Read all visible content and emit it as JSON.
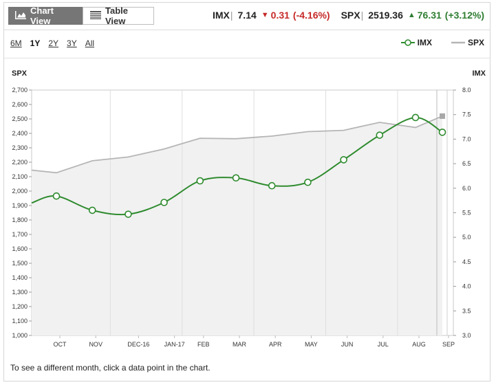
{
  "toolbar": {
    "chart_view_label": "Chart View",
    "table_view_label": "Table View"
  },
  "quotes": [
    {
      "symbol": "IMX",
      "value": "7.14",
      "change": "0.31",
      "pct": "(-4.16%)",
      "direction": "down"
    },
    {
      "symbol": "SPX",
      "value": "2519.36",
      "change": "76.31",
      "pct": "(+3.12%)",
      "direction": "up"
    }
  ],
  "ranges": [
    {
      "label": "6M",
      "selected": false
    },
    {
      "label": "1Y",
      "selected": true
    },
    {
      "label": "2Y",
      "selected": false
    },
    {
      "label": "3Y",
      "selected": false
    },
    {
      "label": "All",
      "selected": false
    }
  ],
  "legend": {
    "imx_label": "IMX",
    "spx_label": "SPX"
  },
  "footnote": "To see a different month, click a data point in the chart.",
  "colors": {
    "imx": "#2e8b2e",
    "spx": "#b5b5b5",
    "area": "#f1f1f1",
    "negative": "#c62828",
    "positive": "#2e7d32"
  },
  "chart_data": {
    "type": "line",
    "categories": [
      "OCT",
      "NOV",
      "DEC-16",
      "JAN-17",
      "FEB",
      "MAR",
      "APR",
      "MAY",
      "JUN",
      "JUL",
      "AUG",
      "SEP"
    ],
    "left_axis": {
      "label": "SPX",
      "ylim": [
        1000,
        2700
      ],
      "ticks": [
        "2,700",
        "2,600",
        "2,500",
        "2,400",
        "2,300",
        "2,200",
        "2,100",
        "2,000",
        "1,900",
        "1,800",
        "1,700",
        "1,600",
        "1,500",
        "1,400",
        "1,300",
        "1,200",
        "1,100",
        "1,000"
      ]
    },
    "right_axis": {
      "label": "IMX",
      "ylim": [
        3.0,
        8.0
      ],
      "ticks": [
        "8.0",
        "7.5",
        "7.0",
        "6.5",
        "6.0",
        "5.5",
        "5.0",
        "4.5",
        "4.0",
        "3.5",
        "3.0"
      ]
    },
    "series": [
      {
        "name": "IMX",
        "axis": "right",
        "start": 5.7,
        "values": [
          5.84,
          5.55,
          5.47,
          5.71,
          6.15,
          6.21,
          6.05,
          6.12,
          6.58,
          7.08,
          7.44,
          7.14
        ]
      },
      {
        "name": "SPX",
        "axis": "left",
        "start": 2145,
        "values": [
          2127,
          2210,
          2236,
          2292,
          2366,
          2363,
          2381,
          2412,
          2421,
          2476,
          2441,
          2519.36
        ]
      }
    ],
    "grid": true
  }
}
